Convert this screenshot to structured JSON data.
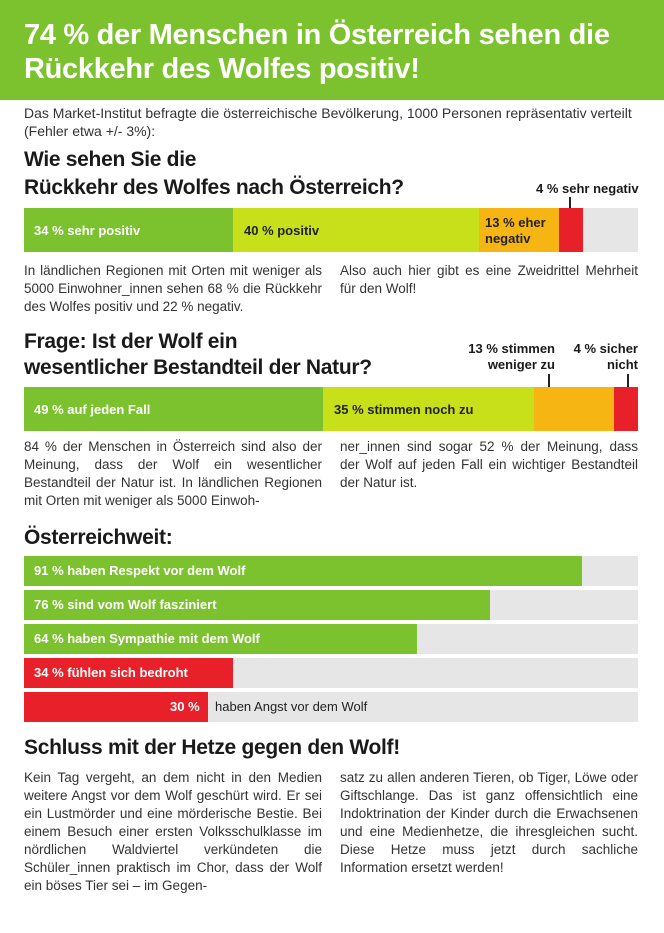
{
  "header": {
    "title": "74 % der Menschen in Österreich sehen die Rückkehr des Wolfes positiv!"
  },
  "intro": "Das Market-Institut befragte die österreichische Bevölkerung, 1000 Personen repräsentativ verteilt (Fehler etwa +/- 3%):",
  "q1": {
    "title_line1": "Wie sehen Sie die",
    "title_line2": "Rückkehr des Wolfes nach Österreich?",
    "outside_label": "4 % sehr negativ",
    "segments": [
      {
        "label": "34 % sehr positiv",
        "value": 34,
        "color": "#7cc22e"
      },
      {
        "label": "40 % positiv",
        "value": 40,
        "color": "#c8e01a"
      },
      {
        "label": "13 % eher negativ",
        "value": 13,
        "color": "#f6b512"
      },
      {
        "label": "4 % sehr negativ",
        "value": 4,
        "color": "#e8202a"
      }
    ],
    "text_left": "In ländlichen Regionen mit Orten mit weniger als 5000 Einwohner_innen sehen 68 % die Rückkehr des Wolfes positiv und 22 % negativ.",
    "text_right": "Also auch hier gibt es eine Zweidrittel Mehrheit für den Wolf!"
  },
  "q2": {
    "title_line1": "Frage: Ist der Wolf ein",
    "title_line2": "wesentlicher Bestandteil der Natur?",
    "outside_label_a_line1": "13 % stimmen",
    "outside_label_a_line2": "weniger zu",
    "outside_label_b_line1": "4 % sicher",
    "outside_label_b_line2": "nicht",
    "segments": [
      {
        "label": "49 % auf jeden Fall",
        "value": 49,
        "color": "#7cc22e"
      },
      {
        "label": "35 % stimmen noch zu",
        "value": 35,
        "color": "#c8e01a"
      },
      {
        "label": "13 % stimmen weniger zu",
        "value": 13,
        "color": "#f6b512"
      },
      {
        "label": "4 % sicher nicht",
        "value": 4,
        "color": "#e8202a"
      }
    ],
    "text_left": "84 % der Menschen in Österreich sind also der Meinung, dass der Wolf ein wesentlicher Bestandteil der Natur ist. In ländlichen Regionen mit Orten mit weniger als 5000 Einwoh-",
    "text_right": "ner_innen sind sogar 52 % der Meinung, dass der Wolf auf jeden Fall ein wichtiger Bestandteil der Natur ist."
  },
  "oesterreichweit": {
    "title": "Österreichweit:",
    "bars": [
      {
        "label": "91 % haben Respekt vor dem Wolf",
        "value": 91,
        "color": "#7cc22e"
      },
      {
        "label": "76 % sind vom Wolf fasziniert",
        "value": 76,
        "color": "#7cc22e"
      },
      {
        "label": "64 % haben Sympathie mit dem Wolf",
        "value": 64,
        "color": "#7cc22e"
      },
      {
        "label": "34 %  fühlen sich bedroht",
        "value": 34,
        "color": "#e8202a"
      },
      {
        "label": "30 %",
        "rest": "haben Angst vor dem Wolf",
        "value": 30,
        "color": "#e8202a"
      }
    ]
  },
  "schluss": {
    "title": "Schluss mit der Hetze gegen den Wolf!",
    "text_left": "Kein Tag vergeht, an dem nicht in den Medien weitere Angst vor dem Wolf geschürt wird. Er sei ein Lustmörder und eine mörderische Bestie. Bei einem Besuch einer ersten Volksschulklasse im nördlichen Waldviertel verkündeten die Schüler_innen praktisch im Chor, dass der Wolf ein böses Tier sei – im Gegen-",
    "text_right": "satz zu allen anderen Tieren, ob Tiger, Löwe oder Giftschlange. Das ist ganz offensichtlich eine Indoktrination der Kinder durch die Erwachsenen und eine Medienhetze, die ihresgleichen sucht. Diese Hetze muss jetzt durch sachliche Information ersetzt werden!"
  }
}
